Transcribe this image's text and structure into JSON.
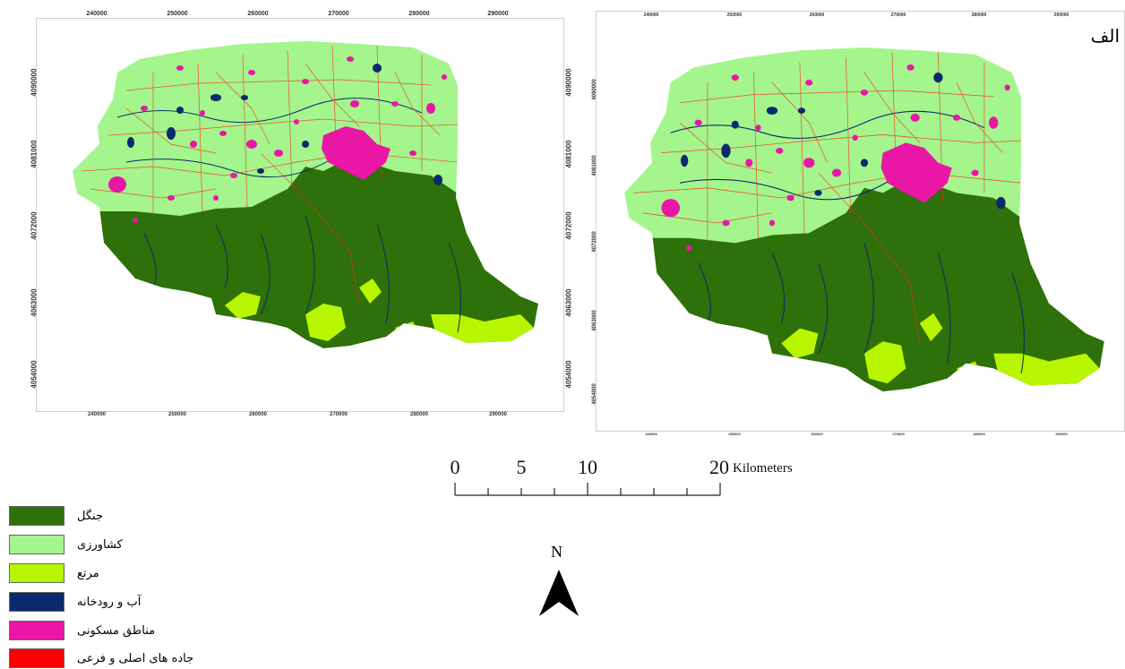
{
  "map_left": {
    "x_ticks": [
      "240000",
      "250000",
      "260000",
      "270000",
      "280000",
      "290000"
    ],
    "y_ticks": [
      "4090000",
      "4081000",
      "4072000",
      "4063000",
      "4054000"
    ]
  },
  "map_right": {
    "panel_label": "الف",
    "x_ticks": [
      "240000",
      "250000",
      "260000",
      "270000",
      "280000",
      "290000"
    ],
    "y_ticks": [
      "4090000",
      "4081000",
      "4072000",
      "4063000",
      "4054000"
    ]
  },
  "scale_bar": {
    "labels": [
      "0",
      "5",
      "10",
      "20"
    ],
    "unit": "Kilometers"
  },
  "north_arrow": {
    "label": "N"
  },
  "legend": [
    {
      "label": "جنگل",
      "color": "#2e7009"
    },
    {
      "label": "کشاورزی",
      "color": "#a4f58c"
    },
    {
      "label": "مرتع",
      "color": "#b8f500"
    },
    {
      "label": "آب و رودخانه",
      "color": "#0a2a6e"
    },
    {
      "label": "مناطق مسکونی",
      "color": "#ea16a6"
    },
    {
      "label": "جاده های اصلی و فرعی",
      "color": "#ff0000"
    }
  ]
}
